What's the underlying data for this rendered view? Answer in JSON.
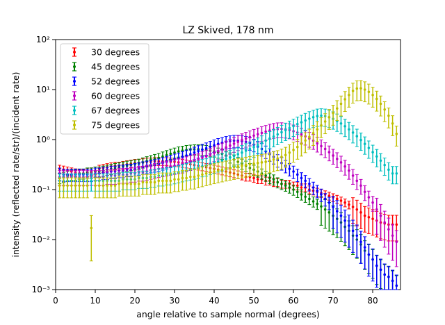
{
  "chart_data": {
    "type": "scatter",
    "title": "LZ Skived, 178 nm",
    "xlabel": "angle relative to sample normal (degrees)",
    "ylabel": "intensity (reflected rate/str)/(incident rate)",
    "xlim": [
      0,
      87
    ],
    "ylim": [
      0.001,
      100
    ],
    "yscale": "log",
    "xticks": [
      "0",
      "10",
      "20",
      "30",
      "40",
      "50",
      "60",
      "70",
      "80"
    ],
    "yticks": [
      "10⁻³",
      "10⁻²",
      "10⁻¹",
      "10⁰",
      "10¹",
      "10²"
    ],
    "legend_position": "upper-left",
    "grid": false,
    "series": [
      {
        "name": "30 degrees",
        "color": "#ff0000",
        "x": [
          1,
          2,
          3,
          4,
          5,
          6,
          7,
          8,
          9,
          10,
          11,
          12,
          13,
          14,
          15,
          16,
          17,
          18,
          19,
          20,
          21,
          22,
          23,
          24,
          25,
          26,
          27,
          28,
          29,
          30,
          31,
          32,
          33,
          34,
          35,
          36,
          37,
          38,
          39,
          40,
          41,
          42,
          43,
          44,
          45,
          46,
          47,
          48,
          49,
          50,
          51,
          52,
          53,
          54,
          55,
          56,
          57,
          58,
          59,
          60,
          61,
          62,
          63,
          64,
          65,
          66,
          67,
          68,
          69,
          70,
          71,
          72,
          73,
          74,
          75,
          76,
          77,
          78,
          79,
          80,
          81,
          82,
          83,
          84,
          85,
          86
        ],
        "y": [
          0.26,
          0.25,
          0.24,
          0.23,
          0.22,
          0.21,
          0.21,
          0.22,
          0.23,
          0.24,
          0.26,
          0.27,
          0.28,
          0.29,
          0.3,
          0.3,
          0.31,
          0.32,
          0.33,
          0.34,
          0.34,
          0.35,
          0.36,
          0.36,
          0.37,
          0.37,
          0.37,
          0.37,
          0.36,
          0.36,
          0.35,
          0.34,
          0.33,
          0.32,
          0.31,
          0.3,
          0.29,
          0.28,
          0.27,
          0.26,
          0.25,
          0.24,
          0.23,
          0.22,
          0.21,
          0.2,
          0.19,
          0.18,
          0.18,
          0.17,
          0.16,
          0.16,
          0.15,
          0.15,
          0.14,
          0.14,
          0.13,
          0.13,
          0.13,
          0.12,
          0.12,
          0.11,
          0.11,
          0.1,
          0.095,
          0.09,
          0.085,
          0.08,
          0.075,
          0.07,
          0.065,
          0.06,
          0.055,
          0.05,
          0.045,
          0.04,
          0.035,
          0.03,
          0.028,
          0.026,
          0.024,
          0.022,
          0.021,
          0.02,
          0.02,
          0.02
        ]
      },
      {
        "name": "45 degrees",
        "color": "#008000",
        "x": [
          1,
          2,
          3,
          4,
          5,
          6,
          7,
          8,
          9,
          10,
          11,
          12,
          13,
          14,
          15,
          16,
          17,
          18,
          19,
          20,
          21,
          22,
          23,
          24,
          25,
          26,
          27,
          28,
          29,
          30,
          31,
          32,
          33,
          34,
          35,
          36,
          37,
          38,
          39,
          40,
          41,
          42,
          43,
          44,
          45,
          46,
          47,
          48,
          49,
          50,
          51,
          52,
          53,
          54,
          55,
          56,
          57,
          58,
          59,
          60,
          61,
          62,
          63,
          64,
          65,
          66,
          67,
          68,
          69,
          70,
          71,
          72,
          73,
          74,
          75,
          76,
          77,
          78,
          79,
          80,
          81,
          82,
          83,
          84,
          85,
          86
        ],
        "y": [
          0.17,
          0.18,
          0.19,
          0.2,
          0.2,
          0.21,
          0.21,
          0.22,
          0.22,
          0.23,
          0.23,
          0.24,
          0.25,
          0.26,
          0.27,
          0.28,
          0.29,
          0.3,
          0.31,
          0.32,
          0.33,
          0.35,
          0.37,
          0.39,
          0.41,
          0.43,
          0.46,
          0.49,
          0.52,
          0.55,
          0.58,
          0.6,
          0.62,
          0.63,
          0.64,
          0.64,
          0.63,
          0.62,
          0.6,
          0.58,
          0.55,
          0.52,
          0.48,
          0.44,
          0.4,
          0.36,
          0.33,
          0.3,
          0.27,
          0.25,
          0.23,
          0.21,
          0.19,
          0.17,
          0.16,
          0.14,
          0.13,
          0.12,
          0.11,
          0.1,
          0.09,
          0.08,
          0.072,
          0.065,
          0.058,
          0.052,
          0.046,
          0.04,
          0.035,
          0.03,
          0.026,
          0.022,
          0.018,
          0.015,
          0.012,
          0.01,
          0.008,
          0.006,
          0.005,
          0.004,
          0.003,
          0.0025,
          0.002,
          0.0018,
          0.0015,
          0.0012
        ]
      },
      {
        "name": "52 degrees",
        "color": "#0000ff",
        "x": [
          1,
          2,
          3,
          4,
          5,
          6,
          7,
          8,
          9,
          10,
          11,
          12,
          13,
          14,
          15,
          16,
          17,
          18,
          19,
          20,
          21,
          22,
          23,
          24,
          25,
          26,
          27,
          28,
          29,
          30,
          31,
          32,
          33,
          34,
          35,
          36,
          37,
          38,
          39,
          40,
          41,
          42,
          43,
          44,
          45,
          46,
          47,
          48,
          49,
          50,
          51,
          52,
          53,
          54,
          55,
          56,
          57,
          58,
          59,
          60,
          61,
          62,
          63,
          64,
          65,
          66,
          67,
          68,
          69,
          70,
          71,
          72,
          73,
          74,
          75,
          76,
          77,
          78,
          79,
          80,
          81,
          82,
          83,
          84,
          85,
          86
        ],
        "y": [
          0.21,
          0.2,
          0.2,
          0.2,
          0.2,
          0.2,
          0.2,
          0.2,
          0.2,
          0.21,
          0.21,
          0.22,
          0.22,
          0.23,
          0.23,
          0.24,
          0.24,
          0.25,
          0.25,
          0.26,
          0.27,
          0.28,
          0.29,
          0.3,
          0.31,
          0.32,
          0.34,
          0.36,
          0.38,
          0.4,
          0.42,
          0.45,
          0.48,
          0.51,
          0.55,
          0.59,
          0.63,
          0.67,
          0.72,
          0.77,
          0.82,
          0.86,
          0.9,
          0.93,
          0.95,
          0.95,
          0.93,
          0.9,
          0.85,
          0.79,
          0.72,
          0.65,
          0.58,
          0.51,
          0.45,
          0.39,
          0.34,
          0.3,
          0.26,
          0.23,
          0.2,
          0.17,
          0.15,
          0.13,
          0.11,
          0.095,
          0.08,
          0.065,
          0.055,
          0.045,
          0.037,
          0.03,
          0.024,
          0.019,
          0.015,
          0.012,
          0.009,
          0.007,
          0.005,
          0.004,
          0.003,
          0.0025,
          0.002,
          0.0018,
          0.0015,
          0.0012
        ]
      },
      {
        "name": "60 degrees",
        "color": "#bf00bf",
        "x": [
          1,
          2,
          3,
          4,
          5,
          6,
          7,
          8,
          9,
          10,
          11,
          12,
          13,
          14,
          15,
          16,
          17,
          18,
          19,
          20,
          21,
          22,
          23,
          24,
          25,
          26,
          27,
          28,
          29,
          30,
          31,
          32,
          33,
          34,
          35,
          36,
          37,
          38,
          39,
          40,
          41,
          42,
          43,
          44,
          45,
          46,
          47,
          48,
          49,
          50,
          51,
          52,
          53,
          54,
          55,
          56,
          57,
          58,
          59,
          60,
          61,
          62,
          63,
          64,
          65,
          66,
          67,
          68,
          69,
          70,
          71,
          72,
          73,
          74,
          75,
          76,
          77,
          78,
          79,
          80,
          81,
          82,
          83,
          84,
          85,
          86
        ],
        "y": [
          0.18,
          0.18,
          0.18,
          0.18,
          0.18,
          0.18,
          0.18,
          0.18,
          0.18,
          0.18,
          0.18,
          0.18,
          0.19,
          0.19,
          0.19,
          0.2,
          0.2,
          0.2,
          0.21,
          0.21,
          0.22,
          0.22,
          0.23,
          0.24,
          0.25,
          0.26,
          0.27,
          0.28,
          0.29,
          0.3,
          0.31,
          0.32,
          0.34,
          0.36,
          0.38,
          0.4,
          0.43,
          0.46,
          0.5,
          0.54,
          0.59,
          0.64,
          0.7,
          0.76,
          0.83,
          0.9,
          0.98,
          1.05,
          1.12,
          1.2,
          1.28,
          1.36,
          1.44,
          1.52,
          1.58,
          1.62,
          1.63,
          1.6,
          1.55,
          1.47,
          1.38,
          1.27,
          1.16,
          1.05,
          0.95,
          0.84,
          0.74,
          0.65,
          0.56,
          0.48,
          0.41,
          0.35,
          0.29,
          0.24,
          0.19,
          0.15,
          0.12,
          0.09,
          0.07,
          0.055,
          0.04,
          0.03,
          0.022,
          0.016,
          0.012,
          0.009
        ]
      },
      {
        "name": "67 degrees",
        "color": "#00bfbf",
        "x": [
          1,
          2,
          3,
          4,
          5,
          6,
          7,
          8,
          9,
          10,
          11,
          12,
          13,
          14,
          15,
          16,
          17,
          18,
          19,
          20,
          21,
          22,
          23,
          24,
          25,
          26,
          27,
          28,
          29,
          30,
          31,
          32,
          33,
          34,
          35,
          36,
          37,
          38,
          39,
          40,
          41,
          42,
          43,
          44,
          45,
          46,
          47,
          48,
          49,
          50,
          51,
          52,
          53,
          54,
          55,
          56,
          57,
          58,
          59,
          60,
          61,
          62,
          63,
          64,
          65,
          66,
          67,
          68,
          69,
          70,
          71,
          72,
          73,
          74,
          75,
          76,
          77,
          78,
          79,
          80,
          81,
          82,
          83,
          84,
          85,
          86
        ],
        "y": [
          0.15,
          0.15,
          0.15,
          0.15,
          0.15,
          0.15,
          0.15,
          0.15,
          0.15,
          0.15,
          0.15,
          0.15,
          0.15,
          0.15,
          0.15,
          0.15,
          0.16,
          0.16,
          0.16,
          0.16,
          0.17,
          0.17,
          0.17,
          0.18,
          0.18,
          0.19,
          0.19,
          0.2,
          0.2,
          0.21,
          0.22,
          0.23,
          0.24,
          0.25,
          0.26,
          0.27,
          0.29,
          0.3,
          0.32,
          0.34,
          0.36,
          0.38,
          0.41,
          0.44,
          0.47,
          0.51,
          0.55,
          0.6,
          0.65,
          0.71,
          0.78,
          0.86,
          0.95,
          1.05,
          1.15,
          1.27,
          1.4,
          1.54,
          1.7,
          1.86,
          2.04,
          2.22,
          2.42,
          2.62,
          2.8,
          2.95,
          3.0,
          2.95,
          2.8,
          2.6,
          2.35,
          2.1,
          1.85,
          1.6,
          1.38,
          1.17,
          0.98,
          0.82,
          0.68,
          0.56,
          0.46,
          0.38,
          0.31,
          0.25,
          0.21,
          0.21
        ]
      },
      {
        "name": "75 degrees",
        "color": "#bfbf00",
        "x": [
          1,
          2,
          3,
          4,
          5,
          6,
          7,
          8,
          9,
          10,
          11,
          12,
          13,
          14,
          15,
          16,
          17,
          18,
          19,
          20,
          21,
          22,
          23,
          24,
          25,
          26,
          27,
          28,
          29,
          30,
          31,
          32,
          33,
          34,
          35,
          36,
          37,
          38,
          39,
          40,
          41,
          42,
          43,
          44,
          45,
          46,
          47,
          48,
          49,
          50,
          51,
          52,
          53,
          54,
          55,
          56,
          57,
          58,
          59,
          60,
          61,
          62,
          63,
          64,
          65,
          66,
          67,
          68,
          69,
          70,
          71,
          72,
          73,
          74,
          75,
          76,
          77,
          78,
          79,
          80,
          81,
          82,
          83,
          84,
          85,
          86
        ],
        "y": [
          0.12,
          0.12,
          0.12,
          0.12,
          0.12,
          0.12,
          0.12,
          0.12,
          0.017,
          0.12,
          0.12,
          0.12,
          0.12,
          0.12,
          0.12,
          0.13,
          0.13,
          0.13,
          0.13,
          0.13,
          0.13,
          0.14,
          0.14,
          0.14,
          0.14,
          0.15,
          0.15,
          0.15,
          0.15,
          0.16,
          0.16,
          0.17,
          0.17,
          0.18,
          0.18,
          0.19,
          0.2,
          0.21,
          0.22,
          0.23,
          0.24,
          0.25,
          0.26,
          0.27,
          0.28,
          0.29,
          0.3,
          0.31,
          0.32,
          0.33,
          0.34,
          0.35,
          0.36,
          0.38,
          0.4,
          0.42,
          0.45,
          0.49,
          0.55,
          0.62,
          0.71,
          0.82,
          0.96,
          1.13,
          1.34,
          1.6,
          1.92,
          2.3,
          2.8,
          3.4,
          4.2,
          5.2,
          6.4,
          7.8,
          9.4,
          10.5,
          10.6,
          10.0,
          9.0,
          7.8,
          6.5,
          5.2,
          4.0,
          3.0,
          2.1,
          1.3
        ]
      }
    ]
  }
}
